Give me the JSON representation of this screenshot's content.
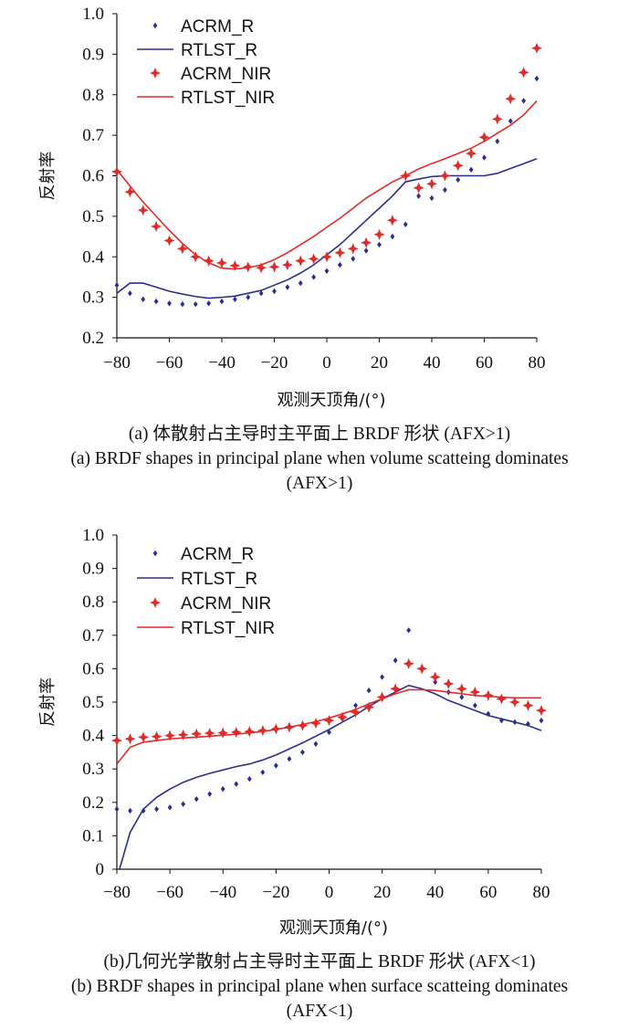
{
  "chart_data": [
    {
      "type": "line",
      "xlabel": "观测天顶角/(°)",
      "ylabel": "反射率",
      "xlim": [
        -80,
        80
      ],
      "ylim": [
        0.2,
        1.0
      ],
      "xticks": [
        "−80",
        "−60",
        "−40",
        "−20",
        "0",
        "20",
        "40",
        "60",
        "80"
      ],
      "yticks": [
        "0.2",
        "0.3",
        "0.4",
        "0.5",
        "0.6",
        "0.7",
        "0.8",
        "0.9",
        "1.0"
      ],
      "legend_position": "top-left",
      "caption_cn": "(a) 体散射占主导时主平面上 BRDF 形状 (AFX>1)",
      "caption_en": "(a) BRDF shapes in principal plane when volume scatteing dominates (AFX>1)",
      "series": [
        {
          "name": "ACRM_R",
          "style": "diamond",
          "color": "#2b2f8c",
          "x": [
            -80,
            -75,
            -70,
            -65,
            -60,
            -55,
            -50,
            -45,
            -40,
            -35,
            -30,
            -25,
            -20,
            -15,
            -10,
            -5,
            0,
            5,
            10,
            15,
            20,
            25,
            30,
            35,
            40,
            45,
            50,
            55,
            60,
            65,
            70,
            75,
            80
          ],
          "y": [
            0.33,
            0.31,
            0.295,
            0.29,
            0.285,
            0.283,
            0.283,
            0.285,
            0.29,
            0.295,
            0.3,
            0.31,
            0.315,
            0.325,
            0.335,
            0.35,
            0.365,
            0.38,
            0.395,
            0.415,
            0.43,
            0.45,
            0.48,
            0.55,
            0.545,
            0.565,
            0.59,
            0.615,
            0.645,
            0.685,
            0.735,
            0.785,
            0.84
          ]
        },
        {
          "name": "RTLST_R",
          "style": "line",
          "color": "#2b2f8c",
          "x": [
            -80,
            -75,
            -70,
            -65,
            -60,
            -55,
            -50,
            -45,
            -40,
            -35,
            -30,
            -25,
            -20,
            -15,
            -10,
            -5,
            0,
            5,
            10,
            15,
            20,
            25,
            30,
            35,
            40,
            45,
            50,
            55,
            60,
            65,
            70,
            75,
            80
          ],
          "y": [
            0.31,
            0.335,
            0.335,
            0.325,
            0.315,
            0.308,
            0.302,
            0.298,
            0.3,
            0.303,
            0.31,
            0.317,
            0.33,
            0.343,
            0.36,
            0.38,
            0.405,
            0.43,
            0.46,
            0.49,
            0.52,
            0.55,
            0.585,
            0.592,
            0.598,
            0.6,
            0.6,
            0.6,
            0.6,
            0.606,
            0.618,
            0.63,
            0.642
          ]
        },
        {
          "name": "ACRM_NIR",
          "style": "star",
          "color": "#e02b2b",
          "x": [
            -80,
            -75,
            -70,
            -65,
            -60,
            -55,
            -50,
            -45,
            -40,
            -35,
            -30,
            -25,
            -20,
            -15,
            -10,
            -5,
            0,
            5,
            10,
            15,
            20,
            25,
            30,
            35,
            40,
            45,
            50,
            55,
            60,
            65,
            70,
            75,
            80
          ],
          "y": [
            0.61,
            0.56,
            0.515,
            0.475,
            0.44,
            0.42,
            0.4,
            0.39,
            0.385,
            0.378,
            0.375,
            0.373,
            0.375,
            0.38,
            0.39,
            0.395,
            0.4,
            0.41,
            0.42,
            0.435,
            0.455,
            0.49,
            0.6,
            0.57,
            0.58,
            0.6,
            0.625,
            0.655,
            0.695,
            0.74,
            0.79,
            0.855,
            0.915
          ]
        },
        {
          "name": "RTLST_NIR",
          "style": "line",
          "color": "#e02b2b",
          "x": [
            -80,
            -75,
            -70,
            -65,
            -60,
            -55,
            -50,
            -45,
            -40,
            -35,
            -30,
            -25,
            -20,
            -15,
            -10,
            -5,
            0,
            5,
            10,
            15,
            20,
            25,
            30,
            35,
            40,
            45,
            50,
            55,
            60,
            65,
            70,
            75,
            80
          ],
          "y": [
            0.615,
            0.575,
            0.535,
            0.5,
            0.465,
            0.433,
            0.405,
            0.385,
            0.372,
            0.37,
            0.373,
            0.38,
            0.393,
            0.41,
            0.43,
            0.45,
            0.473,
            0.495,
            0.52,
            0.545,
            0.565,
            0.585,
            0.6,
            0.617,
            0.63,
            0.642,
            0.655,
            0.668,
            0.685,
            0.705,
            0.725,
            0.75,
            0.785
          ]
        }
      ]
    },
    {
      "type": "line",
      "xlabel": "观测天顶角/(°)",
      "ylabel": "反射率",
      "xlim": [
        -80,
        80
      ],
      "ylim": [
        0,
        1.0
      ],
      "xticks": [
        "−80",
        "−60",
        "−40",
        "−20",
        "0",
        "20",
        "40",
        "60",
        "80"
      ],
      "yticks": [
        "0",
        "0.1",
        "0.2",
        "0.3",
        "0.4",
        "0.5",
        "0.6",
        "0.7",
        "0.8",
        "0.9",
        "1.0"
      ],
      "legend_position": "top-left",
      "caption_cn": "(b)几何光学散射占主导时主平面上 BRDF 形状 (AFX<1)",
      "caption_en": "(b) BRDF shapes in principal plane when surface scatteing dominates (AFX<1)",
      "series": [
        {
          "name": "ACRM_R",
          "style": "diamond",
          "color": "#2b2f8c",
          "x": [
            -80,
            -75,
            -70,
            -65,
            -60,
            -55,
            -50,
            -45,
            -40,
            -35,
            -30,
            -25,
            -20,
            -15,
            -10,
            -5,
            0,
            5,
            10,
            15,
            20,
            25,
            30,
            35,
            40,
            45,
            50,
            55,
            60,
            65,
            70,
            75,
            80
          ],
          "y": [
            0.18,
            0.175,
            0.175,
            0.18,
            0.185,
            0.195,
            0.21,
            0.225,
            0.24,
            0.255,
            0.27,
            0.29,
            0.31,
            0.33,
            0.35,
            0.375,
            0.41,
            0.45,
            0.49,
            0.535,
            0.575,
            0.625,
            0.715,
            0.6,
            0.56,
            0.53,
            0.515,
            0.49,
            0.465,
            0.445,
            0.44,
            0.435,
            0.445
          ]
        },
        {
          "name": "RTLST_R",
          "style": "line",
          "color": "#2b2f8c",
          "x": [
            -79,
            -75,
            -70,
            -65,
            -60,
            -55,
            -50,
            -45,
            -40,
            -35,
            -30,
            -25,
            -20,
            -15,
            -10,
            -5,
            0,
            5,
            10,
            15,
            20,
            25,
            30,
            35,
            40,
            45,
            50,
            55,
            60,
            65,
            70,
            75,
            80
          ],
          "y": [
            0.0,
            0.11,
            0.18,
            0.215,
            0.24,
            0.26,
            0.275,
            0.287,
            0.297,
            0.307,
            0.315,
            0.327,
            0.342,
            0.36,
            0.378,
            0.398,
            0.418,
            0.44,
            0.462,
            0.487,
            0.51,
            0.53,
            0.55,
            0.54,
            0.525,
            0.505,
            0.49,
            0.475,
            0.46,
            0.45,
            0.44,
            0.43,
            0.415
          ]
        },
        {
          "name": "ACRM_NIR",
          "style": "star",
          "color": "#e02b2b",
          "x": [
            -80,
            -75,
            -70,
            -65,
            -60,
            -55,
            -50,
            -45,
            -40,
            -35,
            -30,
            -25,
            -20,
            -15,
            -10,
            -5,
            0,
            5,
            10,
            15,
            20,
            25,
            30,
            35,
            40,
            45,
            50,
            55,
            60,
            65,
            70,
            75,
            80
          ],
          "y": [
            0.385,
            0.39,
            0.395,
            0.397,
            0.4,
            0.402,
            0.405,
            0.407,
            0.408,
            0.41,
            0.412,
            0.415,
            0.42,
            0.425,
            0.43,
            0.437,
            0.445,
            0.455,
            0.47,
            0.485,
            0.515,
            0.54,
            0.615,
            0.6,
            0.575,
            0.555,
            0.54,
            0.53,
            0.52,
            0.51,
            0.5,
            0.49,
            0.475
          ]
        },
        {
          "name": "RTLST_NIR",
          "style": "line",
          "color": "#e02b2b",
          "x": [
            -80,
            -75,
            -70,
            -65,
            -60,
            -55,
            -50,
            -45,
            -40,
            -35,
            -30,
            -25,
            -20,
            -15,
            -10,
            -5,
            0,
            5,
            10,
            15,
            20,
            25,
            30,
            35,
            40,
            45,
            50,
            55,
            60,
            65,
            70,
            75,
            80
          ],
          "y": [
            0.315,
            0.365,
            0.38,
            0.385,
            0.39,
            0.393,
            0.395,
            0.398,
            0.401,
            0.404,
            0.408,
            0.412,
            0.418,
            0.425,
            0.433,
            0.442,
            0.452,
            0.465,
            0.478,
            0.495,
            0.51,
            0.525,
            0.537,
            0.537,
            0.535,
            0.53,
            0.525,
            0.52,
            0.517,
            0.515,
            0.513,
            0.513,
            0.513
          ]
        }
      ]
    }
  ]
}
